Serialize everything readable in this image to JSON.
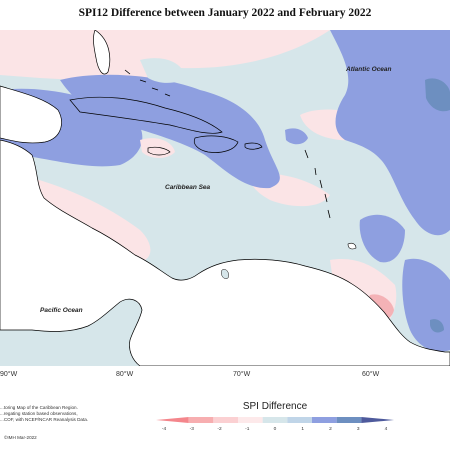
{
  "title": "SPI12 Difference between January 2022 and February 2022",
  "ocean_labels": {
    "atlantic": "Atlantic Ocean",
    "caribbean": "Caribbean Sea",
    "pacific": "Pacific Ocean"
  },
  "lon_labels": [
    "90°W",
    "80°W",
    "70°W",
    "60°W"
  ],
  "legend": {
    "title": "SPI Difference",
    "ticks": [
      "-4",
      "-3",
      "-2",
      "-1",
      "0",
      "1",
      "2",
      "3",
      "4"
    ],
    "colors": [
      "#f4868c",
      "#f7aeb0",
      "#fbd0d2",
      "#fde9ea",
      "#d6e6ea",
      "#c0d5e8",
      "#8e9fe0",
      "#6d8fc0",
      "#4e5a9c"
    ]
  },
  "credits": [
    "...toring Map of the Caribbean Region.",
    "...regating station based observations,",
    "...COF, with NCEP/NCAR Reanalysis Data."
  ],
  "footnote": "©IMH Mar-2022",
  "colors": {
    "neutral": "#d6e6ea",
    "wet": "#8e9fe0",
    "wet_strong": "#6d8fc0",
    "dry_light": "#fbe4e6",
    "dry": "#f4b2b6",
    "land": "#ffffff"
  }
}
